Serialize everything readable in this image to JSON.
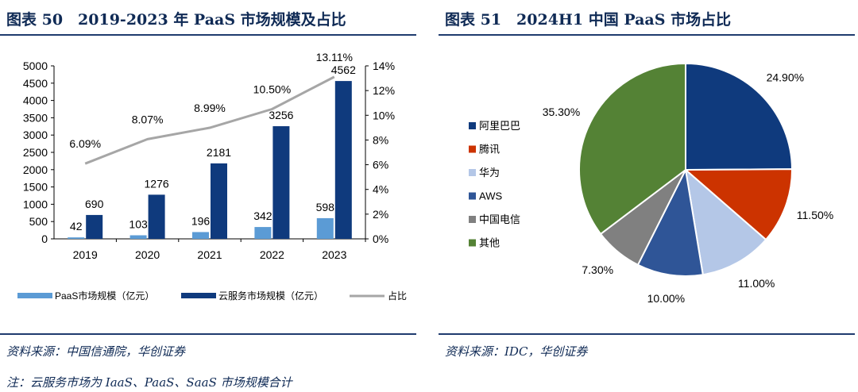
{
  "left_panel": {
    "title": "图表 50　2019-2023 年 PaaS 市场规模及占比",
    "source": "资料来源：中国信通院，华创证券",
    "note": "注：云服务市场为 IaaS、PaaS、SaaS 市场规模合计"
  },
  "right_panel": {
    "title": "图表 51　2024H1 中国 PaaS 市场占比",
    "source": "资料来源：IDC，华创证券"
  },
  "chart_data": [
    {
      "type": "bar",
      "title": "",
      "categories": [
        "2019",
        "2020",
        "2021",
        "2022",
        "2023"
      ],
      "series": [
        {
          "name": "PaaS市场规模（亿元）",
          "values": [
            42,
            103,
            196,
            342,
            598
          ],
          "color": "#5b9bd5",
          "axis": "left"
        },
        {
          "name": "云服务市场规模（亿元）",
          "values": [
            690,
            1276,
            2181,
            3256,
            4562
          ],
          "color": "#0f3a7d",
          "axis": "left"
        },
        {
          "name": "占比",
          "type": "line",
          "values": [
            6.09,
            8.07,
            8.99,
            10.5,
            13.11
          ],
          "labels": [
            "6.09%",
            "8.07%",
            "8.99%",
            "10.50%",
            "13.11%"
          ],
          "color": "#a6a6a6",
          "axis": "right"
        }
      ],
      "y_ticks_left": [
        "0",
        "500",
        "1000",
        "1500",
        "2000",
        "2500",
        "3000",
        "3500",
        "4000",
        "4500",
        "5000"
      ],
      "y_ticks_right": [
        "0%",
        "2%",
        "4%",
        "6%",
        "8%",
        "10%",
        "12%",
        "14%"
      ],
      "ylim_left": [
        0,
        5000
      ],
      "ylim_right": [
        0,
        14
      ],
      "grid": false,
      "legend_position": "bottom"
    },
    {
      "type": "pie",
      "title": "",
      "slices": [
        {
          "name": "阿里巴巴",
          "value": 24.9,
          "label": "24.90%",
          "color": "#0f3a7d"
        },
        {
          "name": "腾讯",
          "value": 11.5,
          "label": "11.50%",
          "color": "#cc3300"
        },
        {
          "name": "华为",
          "value": 11.0,
          "label": "11.00%",
          "color": "#b4c7e7"
        },
        {
          "name": "AWS",
          "value": 10.0,
          "label": "10.00%",
          "color": "#2f5597"
        },
        {
          "name": "中国电信",
          "value": 7.3,
          "label": "7.30%",
          "color": "#808080"
        },
        {
          "name": "其他",
          "value": 35.3,
          "label": "35.30%",
          "color": "#548235"
        }
      ],
      "legend_position": "left"
    }
  ]
}
